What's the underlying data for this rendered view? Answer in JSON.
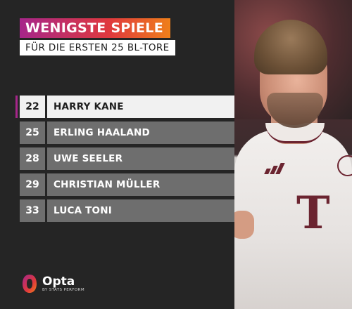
{
  "title": {
    "main": "WENIGSTE SPIELE",
    "sub": "FÜR DIE ERSTEN 25 BL-TORE"
  },
  "colors": {
    "accent_magenta": "#a6268a",
    "accent_orange": "#ef7f1a",
    "row_bg": "#6e6e6e",
    "highlight_bg": "#f1f1f1",
    "background": "#252525"
  },
  "table": {
    "rows": [
      {
        "games": "22",
        "player": "HARRY KANE",
        "highlighted": true
      },
      {
        "games": "25",
        "player": "ERLING HAALAND",
        "highlighted": false
      },
      {
        "games": "28",
        "player": "UWE SEELER",
        "highlighted": false
      },
      {
        "games": "29",
        "player": "CHRISTIAN MÜLLER",
        "highlighted": false
      },
      {
        "games": "33",
        "player": "LUCA TONI",
        "highlighted": false
      }
    ]
  },
  "logo": {
    "brand": "Opta",
    "sub": "BY STATS PERFORM",
    "icon": "opta-logo-icon"
  },
  "photo": {
    "icon": "player-photo"
  }
}
